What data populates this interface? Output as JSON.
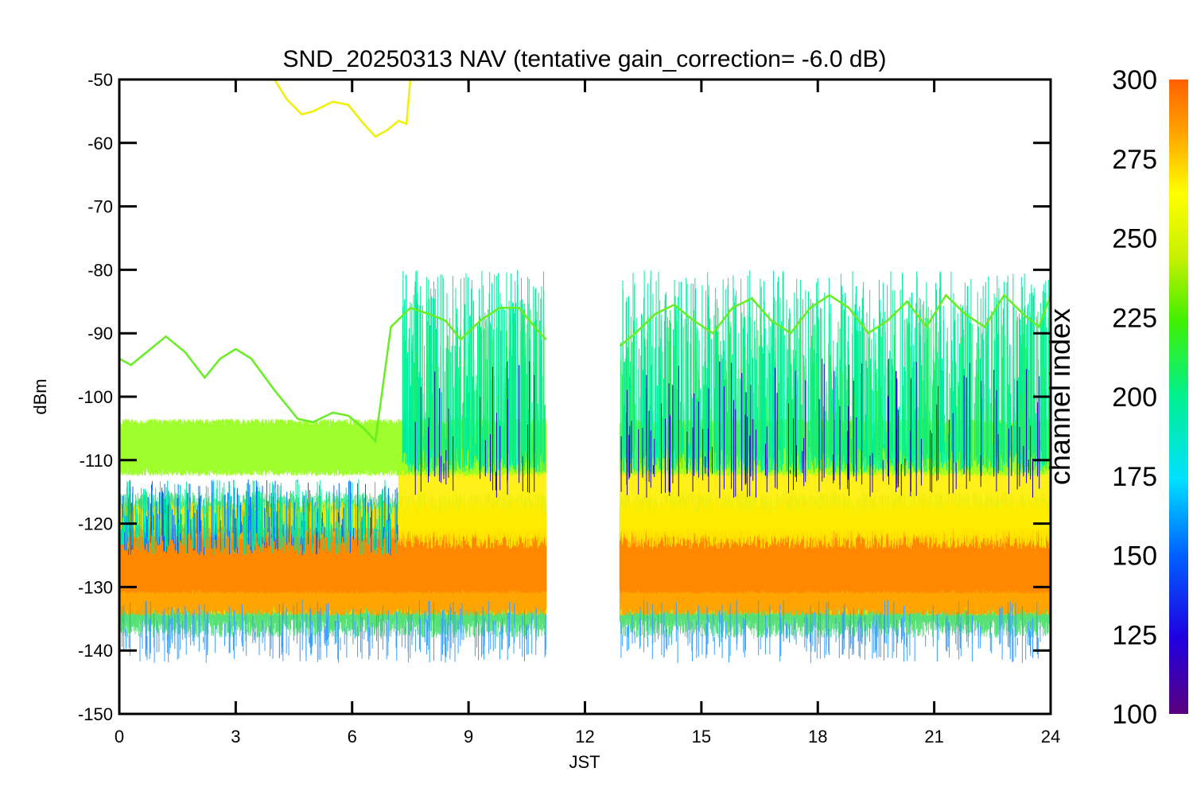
{
  "chart_data": {
    "type": "line",
    "title": "SND_20250313 NAV (tentative gain_correction= -6.0 dB)",
    "xlabel": "JST",
    "ylabel": "dBm",
    "xlim": [
      0,
      24
    ],
    "ylim": [
      -150,
      -50
    ],
    "x_ticks": [
      0,
      3,
      6,
      9,
      12,
      15,
      18,
      21,
      24
    ],
    "x_tick_labels": [
      "0",
      "3",
      "6",
      "9",
      "12",
      "15",
      "18",
      "21",
      "24"
    ],
    "y_ticks": [
      -50,
      -60,
      -70,
      -80,
      -90,
      -100,
      -110,
      -120,
      -130,
      -140,
      -150
    ],
    "y_tick_labels": [
      "-50",
      "-60",
      "-70",
      "-80",
      "-90",
      "-100",
      "-110",
      "-120",
      "-130",
      "-140",
      "-150"
    ],
    "data_gap_jst": [
      11.0,
      12.9
    ],
    "colorbar": {
      "label": "channel index",
      "range": [
        100,
        300
      ],
      "ticks": [
        100,
        125,
        150,
        175,
        200,
        225,
        250,
        275,
        300
      ],
      "tick_labels": [
        "100",
        "125",
        "150",
        "175",
        "200",
        "225",
        "250",
        "275",
        "300"
      ],
      "colormap": [
        "#5a007f",
        "#2000e0",
        "#0060ff",
        "#00e0ff",
        "#00f090",
        "#40f000",
        "#c8f000",
        "#ffff00",
        "#ffa000",
        "#ff6000"
      ]
    },
    "series": [
      {
        "color": "#66ee22",
        "x": [
          0.0,
          0.3,
          0.7,
          1.2,
          1.7,
          2.2,
          2.6,
          3.0,
          3.4,
          4.0,
          4.6,
          5.0,
          5.5,
          5.9,
          6.3,
          6.6,
          7.0,
          7.5,
          8.0,
          8.4,
          8.8,
          9.3,
          9.8,
          10.3,
          10.7,
          11.0,
          12.9,
          13.3,
          13.8,
          14.3,
          14.8,
          15.3,
          15.8,
          16.3,
          16.8,
          17.3,
          17.8,
          18.3,
          18.8,
          19.3,
          19.8,
          20.3,
          20.8,
          21.3,
          21.8,
          22.3,
          22.8,
          23.3,
          23.7,
          24.0
        ],
        "y": [
          -94,
          -95,
          -93,
          -90.5,
          -93,
          -97,
          -94,
          -92.5,
          -94,
          -99,
          -103.5,
          -104,
          -102.5,
          -103,
          -105,
          -107,
          -89,
          -86,
          -87,
          -88,
          -91,
          -88,
          -86,
          -86,
          -89,
          -91,
          -92,
          -90,
          -87,
          -85.5,
          -88,
          -90,
          -86,
          -84.5,
          -88,
          -90,
          -86,
          -84,
          -86,
          -90,
          -88,
          -85,
          -89,
          -84,
          -87,
          -89,
          -84,
          -87,
          -89,
          -84
        ]
      },
      {
        "color": "#f0f000",
        "x": [
          4.0,
          4.3,
          4.7,
          5.0,
          5.5,
          5.9,
          6.3,
          6.6,
          6.9,
          7.2,
          7.4,
          7.5
        ],
        "y": [
          -50,
          -53,
          -55.5,
          -55,
          -53.5,
          -54,
          -57,
          -59,
          -58,
          -56.5,
          -57,
          -50
        ]
      }
    ]
  }
}
